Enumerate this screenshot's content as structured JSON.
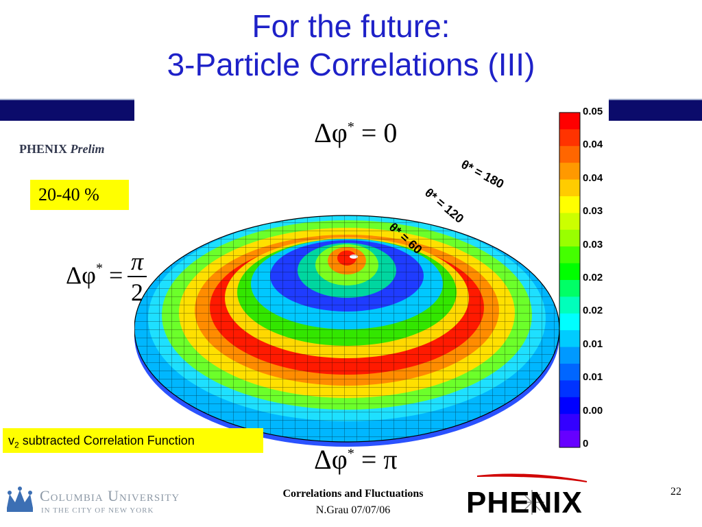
{
  "slide": {
    "title_line1": "For the future:",
    "title_line2": "3-Particle Correlations (III)",
    "prelim_prefix": "PHENIX ",
    "prelim_italic": "Prelim",
    "centrality": "20-40 %",
    "dphi_top": {
      "lhs": "Δφ",
      "sup": "*",
      "rhs": " = 0"
    },
    "dphi_left": {
      "lhs": "Δφ",
      "sup": "*",
      "rhs": " =",
      "num": "π",
      "den": "2"
    },
    "dphi_bottom": {
      "lhs": "Δφ",
      "sup": "*",
      "rhs": " = π"
    },
    "theta_labels": [
      "θ* = 180",
      "θ* = 120",
      "θ* = 60"
    ],
    "v2_prefix": "v",
    "v2_sub": "2",
    "v2_suffix": " subtracted Correlation Function",
    "footer_title": "Correlations and Fluctuations",
    "footer_author": "N.Grau 07/07/06",
    "page_number": "22",
    "columbia_name": "Columbia University",
    "columbia_sub": "IN THE CITY OF NEW YORK",
    "phenix_logo": "PHENIX"
  },
  "colorbar": {
    "tick_labels": [
      "0.05",
      "0.04",
      "0.04",
      "0.03",
      "0.03",
      "0.02",
      "0.02",
      "0.01",
      "0.01",
      "0.00",
      "0"
    ],
    "colors": [
      "#ff0000",
      "#ff3300",
      "#ff6600",
      "#ff9900",
      "#ffcc00",
      "#ffff00",
      "#ccff00",
      "#99ff00",
      "#44ff00",
      "#00ff00",
      "#00ff66",
      "#00ffbb",
      "#00ffff",
      "#00ccff",
      "#0099ff",
      "#0066ff",
      "#0033ff",
      "#0000ff",
      "#3300ff",
      "#6600ff"
    ]
  },
  "colors": {
    "title": "#1e21c8",
    "band": "#0b0b6b",
    "highlight": "#ffff00"
  }
}
